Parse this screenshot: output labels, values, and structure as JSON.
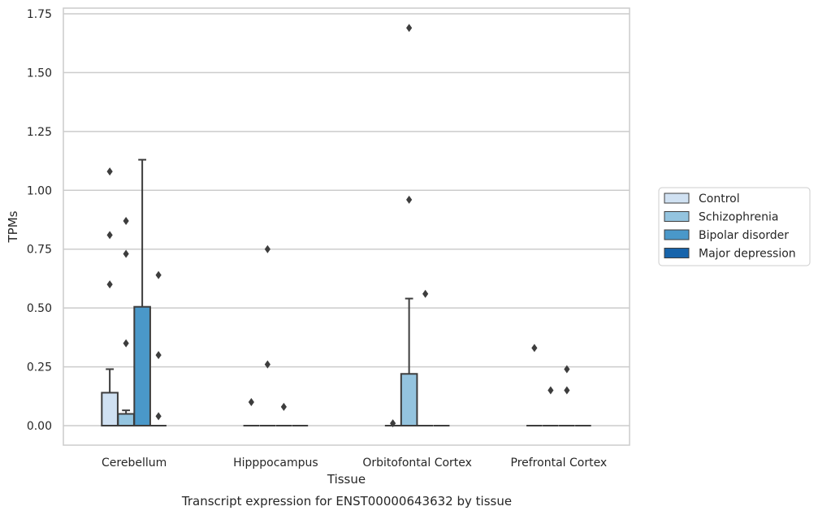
{
  "chart_data": {
    "type": "box",
    "title": "",
    "xlabel": "Tissue",
    "ylabel": "TPMs",
    "caption": "Transcript expression for ENST00000643632 by tissue",
    "ylim": [
      -0.085,
      1.77
    ],
    "yticks": [
      0.0,
      0.25,
      0.5,
      0.75,
      1.0,
      1.25,
      1.5,
      1.75
    ],
    "ytick_labels": [
      "0.00",
      "0.25",
      "0.50",
      "0.75",
      "1.00",
      "1.25",
      "1.50",
      "1.75"
    ],
    "categories": [
      "Cerebellum",
      "Hipppocampus",
      "Orbitofontal Cortex",
      "Prefrontal Cortex"
    ],
    "grid": true,
    "legend_position": "right",
    "series": [
      {
        "name": "Control",
        "color": "#d0e1f2",
        "boxes": [
          {
            "q1": 0,
            "median": 0,
            "q3": 0.14,
            "whisker_low": 0,
            "whisker_high": 0.24,
            "outliers": [
              1.08,
              0.81,
              0.6
            ]
          },
          {
            "q1": 0,
            "median": 0,
            "q3": 0,
            "whisker_low": 0,
            "whisker_high": 0,
            "outliers": [
              0.1
            ]
          },
          {
            "q1": 0,
            "median": 0,
            "q3": 0,
            "whisker_low": 0,
            "whisker_high": 0,
            "outliers": [
              0.01
            ]
          },
          {
            "q1": 0,
            "median": 0,
            "q3": 0,
            "whisker_low": 0,
            "whisker_high": 0,
            "outliers": [
              0.33
            ]
          }
        ]
      },
      {
        "name": "Schizophrenia",
        "color": "#94c4df",
        "boxes": [
          {
            "q1": 0,
            "median": 0,
            "q3": 0.05,
            "whisker_low": 0,
            "whisker_high": 0.065,
            "outliers": [
              0.87,
              0.73,
              0.35
            ]
          },
          {
            "q1": 0,
            "median": 0,
            "q3": 0,
            "whisker_low": 0,
            "whisker_high": 0,
            "outliers": [
              0.75,
              0.26
            ]
          },
          {
            "q1": 0,
            "median": 0,
            "q3": 0.22,
            "whisker_low": 0,
            "whisker_high": 0.54,
            "outliers": [
              1.69,
              0.96
            ]
          },
          {
            "q1": 0,
            "median": 0,
            "q3": 0,
            "whisker_low": 0,
            "whisker_high": 0,
            "outliers": [
              0.15
            ]
          }
        ]
      },
      {
        "name": "Bipolar disorder",
        "color": "#4a98c9",
        "boxes": [
          {
            "q1": 0,
            "median": 0,
            "q3": 0.505,
            "whisker_low": 0,
            "whisker_high": 1.13,
            "outliers": []
          },
          {
            "q1": 0,
            "median": 0,
            "q3": 0,
            "whisker_low": 0,
            "whisker_high": 0,
            "outliers": [
              0.08
            ]
          },
          {
            "q1": 0,
            "median": 0,
            "q3": 0,
            "whisker_low": 0,
            "whisker_high": 0,
            "outliers": [
              0.56
            ]
          },
          {
            "q1": 0,
            "median": 0,
            "q3": 0,
            "whisker_low": 0,
            "whisker_high": 0,
            "outliers": [
              0.15,
              0.24
            ]
          }
        ]
      },
      {
        "name": "Major depression",
        "color": "#1764ab",
        "boxes": [
          {
            "q1": 0,
            "median": 0,
            "q3": 0,
            "whisker_low": 0,
            "whisker_high": 0,
            "outliers": [
              0.64,
              0.3,
              0.04
            ]
          },
          {
            "q1": 0,
            "median": 0,
            "q3": 0,
            "whisker_low": 0,
            "whisker_high": 0,
            "outliers": []
          },
          {
            "q1": 0,
            "median": 0,
            "q3": 0,
            "whisker_low": 0,
            "whisker_high": 0,
            "outliers": []
          },
          {
            "q1": 0,
            "median": 0,
            "q3": 0,
            "whisker_low": 0,
            "whisker_high": 0,
            "outliers": []
          }
        ]
      }
    ]
  }
}
